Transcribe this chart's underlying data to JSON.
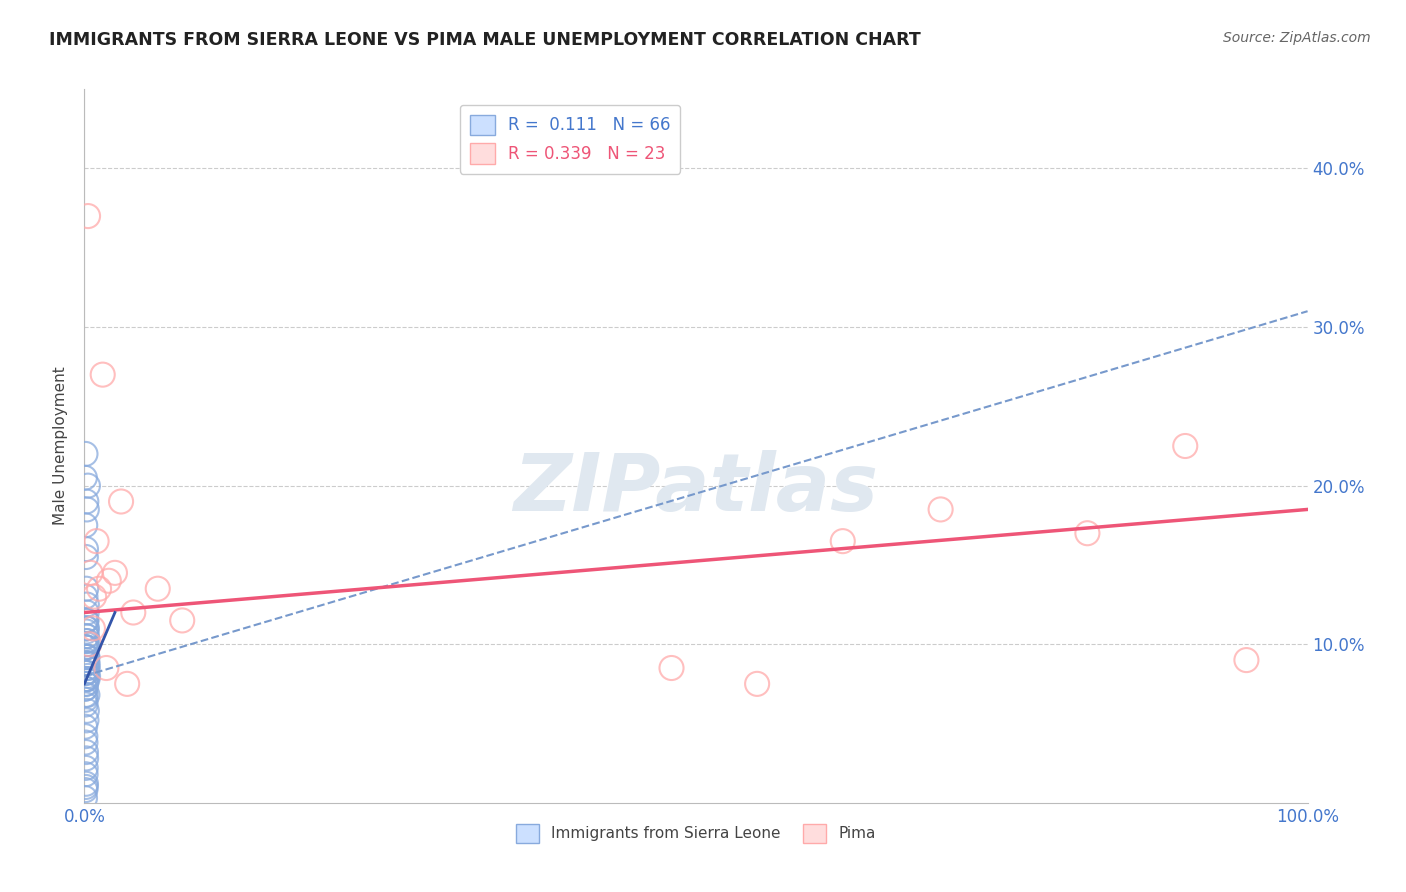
{
  "title": "IMMIGRANTS FROM SIERRA LEONE VS PIMA MALE UNEMPLOYMENT CORRELATION CHART",
  "source": "Source: ZipAtlas.com",
  "ylabel": "Male Unemployment",
  "xlim": [
    0,
    100
  ],
  "ylim": [
    0,
    45
  ],
  "xticks": [
    0,
    20,
    40,
    60,
    80,
    100
  ],
  "xticklabels": [
    "0.0%",
    "",
    "",
    "",
    "",
    "100.0%"
  ],
  "yticks": [
    10,
    20,
    30,
    40
  ],
  "yticklabels": [
    "10.0%",
    "20.0%",
    "30.0%",
    "40.0%"
  ],
  "blue_color": "#88aadd",
  "pink_color": "#ffaaaa",
  "blue_line_color": "#7799cc",
  "pink_line_color": "#ee5577",
  "legend_blue_label": "R =  0.111   N = 66",
  "legend_pink_label": "R = 0.339   N = 23",
  "blue_scatter_x": [
    0.15,
    0.18,
    0.12,
    0.22,
    0.25,
    0.3,
    0.1,
    0.14,
    0.16,
    0.19,
    0.2,
    0.28,
    0.08,
    0.11,
    0.13,
    0.17,
    0.21,
    0.26,
    0.09,
    0.12,
    0.15,
    0.18,
    0.23,
    0.07,
    0.1,
    0.14,
    0.16,
    0.19,
    0.24,
    0.09,
    0.12,
    0.15,
    0.2,
    0.27,
    0.1,
    0.14,
    0.17,
    0.21,
    0.08,
    0.12,
    0.16,
    0.19,
    0.25,
    0.06,
    0.09,
    0.13,
    0.17,
    0.2,
    0.08,
    0.14,
    0.11,
    0.1,
    0.13,
    0.08,
    0.05,
    0.11,
    0.16,
    0.29,
    0.1,
    0.14,
    0.07,
    0.12,
    0.04,
    0.09,
    0.13,
    0.2
  ],
  "blue_scatter_y": [
    13.5,
    11.5,
    7.5,
    8.5,
    6.8,
    8.0,
    9.0,
    9.8,
    10.8,
    12.0,
    12.5,
    8.5,
    7.2,
    7.8,
    10.2,
    11.0,
    9.2,
    7.8,
    13.0,
    11.5,
    9.8,
    10.5,
    9.2,
    8.2,
    9.8,
    11.5,
    7.8,
    8.8,
    10.2,
    6.8,
    8.2,
    9.2,
    10.5,
    8.8,
    6.2,
    7.8,
    9.8,
    11.0,
    7.2,
    8.8,
    10.0,
    8.2,
    9.2,
    4.8,
    3.8,
    3.2,
    5.2,
    5.8,
    4.2,
    2.8,
    2.2,
    1.8,
    1.2,
    0.8,
    0.3,
    1.0,
    19.0,
    20.0,
    6.5,
    7.5,
    17.5,
    15.5,
    20.5,
    22.0,
    16.0,
    18.5
  ],
  "pink_scatter_x": [
    1.5,
    3.0,
    0.3,
    2.5,
    0.8,
    55.0,
    70.0,
    82.0,
    90.0,
    95.0,
    48.0,
    62.0,
    0.5,
    1.0,
    2.0,
    4.0,
    6.0,
    8.0,
    0.4,
    0.7,
    1.2,
    1.8,
    3.5
  ],
  "pink_scatter_y": [
    27.0,
    19.0,
    37.0,
    14.5,
    13.0,
    7.5,
    18.5,
    17.0,
    22.5,
    9.0,
    8.5,
    16.5,
    14.5,
    16.5,
    14.0,
    12.0,
    13.5,
    11.5,
    10.0,
    11.0,
    13.5,
    8.5,
    7.5
  ],
  "blue_regline_x": [
    0,
    100
  ],
  "blue_regline_y": [
    8.0,
    31.0
  ],
  "blue_solidline_x": [
    0.0,
    2.5
  ],
  "blue_solidline_y": [
    7.5,
    12.0
  ],
  "pink_line_x": [
    0,
    100
  ],
  "pink_line_y": [
    12.0,
    18.5
  ],
  "watermark": "ZIPatlas",
  "background_color": "#ffffff",
  "grid_color": "#cccccc"
}
